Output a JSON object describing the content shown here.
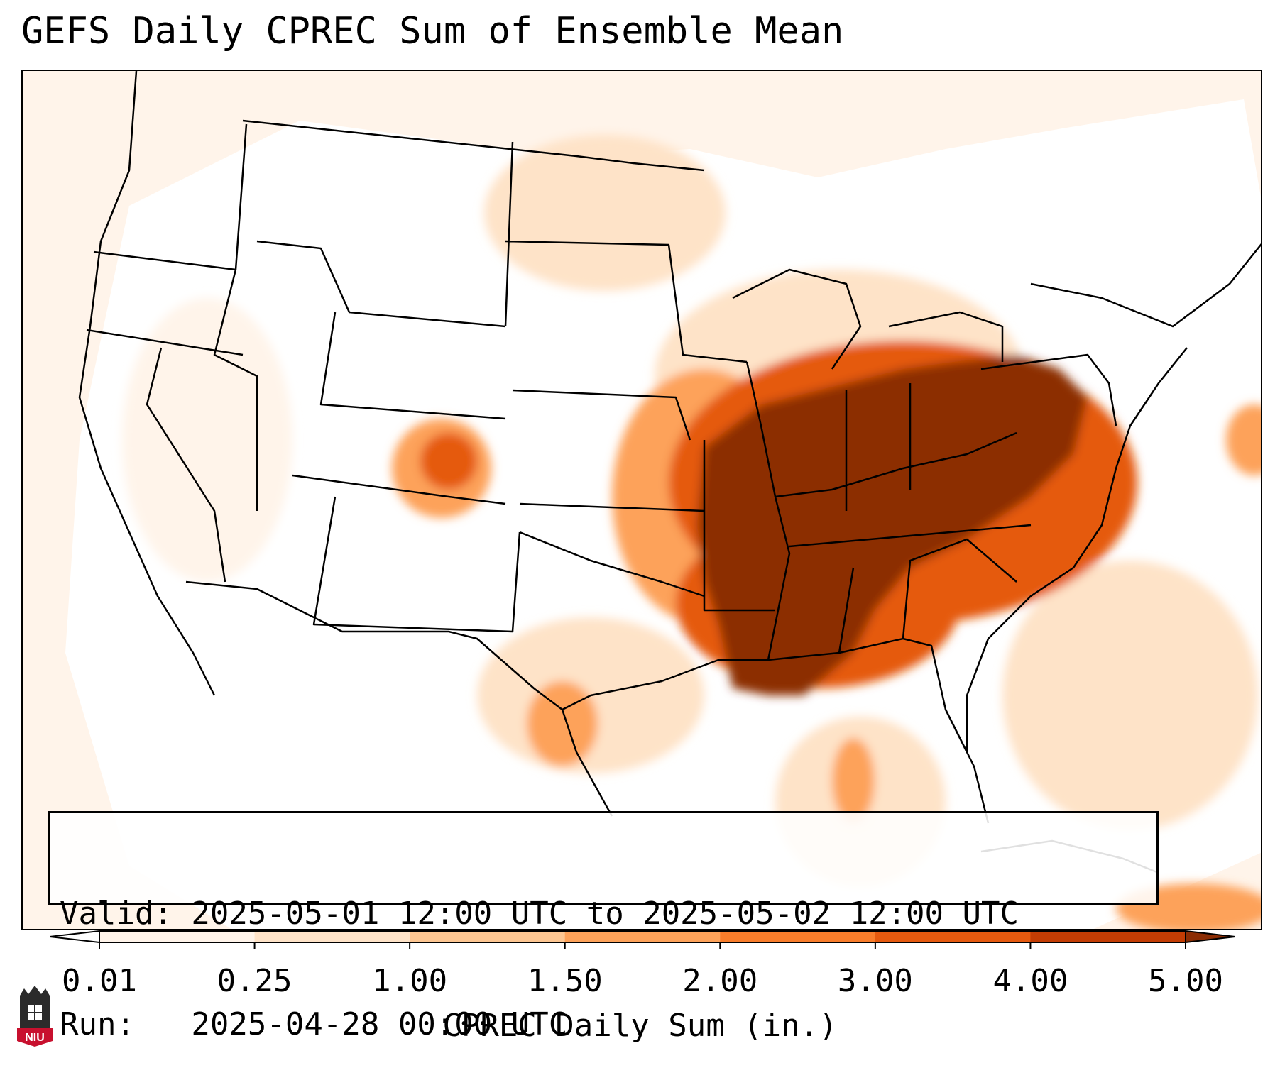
{
  "title": "GEFS Daily CPREC Sum of Ensemble Mean",
  "info": {
    "valid_line": "Valid: 2025-05-01 12:00 UTC to 2025-05-02 12:00 UTC",
    "run_line": "Run:   2025-04-28 00:00 UTC"
  },
  "colorbar": {
    "label": "CPREC Daily Sum (in.)",
    "ticks": [
      "0.01",
      "0.25",
      "1.00",
      "1.50",
      "2.00",
      "3.00",
      "4.00",
      "5.00"
    ],
    "colors": [
      "#fff4ea",
      "#fee3c8",
      "#fdc692",
      "#fda25a",
      "#f87d2b",
      "#e55a0f",
      "#c33d04",
      "#8c2d04"
    ],
    "under_color": "#ffffff",
    "over_color": "#8c2d04",
    "extend": "both"
  },
  "logo": {
    "text": "NIU",
    "colors": {
      "brand": "#c8102e",
      "dark": "#2b2b2b"
    }
  },
  "map": {
    "projection": "lambert-conformal",
    "domain": "CONUS",
    "boundaries": [
      "coastlines",
      "country-borders",
      "state-borders"
    ],
    "line_color": "#000000"
  }
}
